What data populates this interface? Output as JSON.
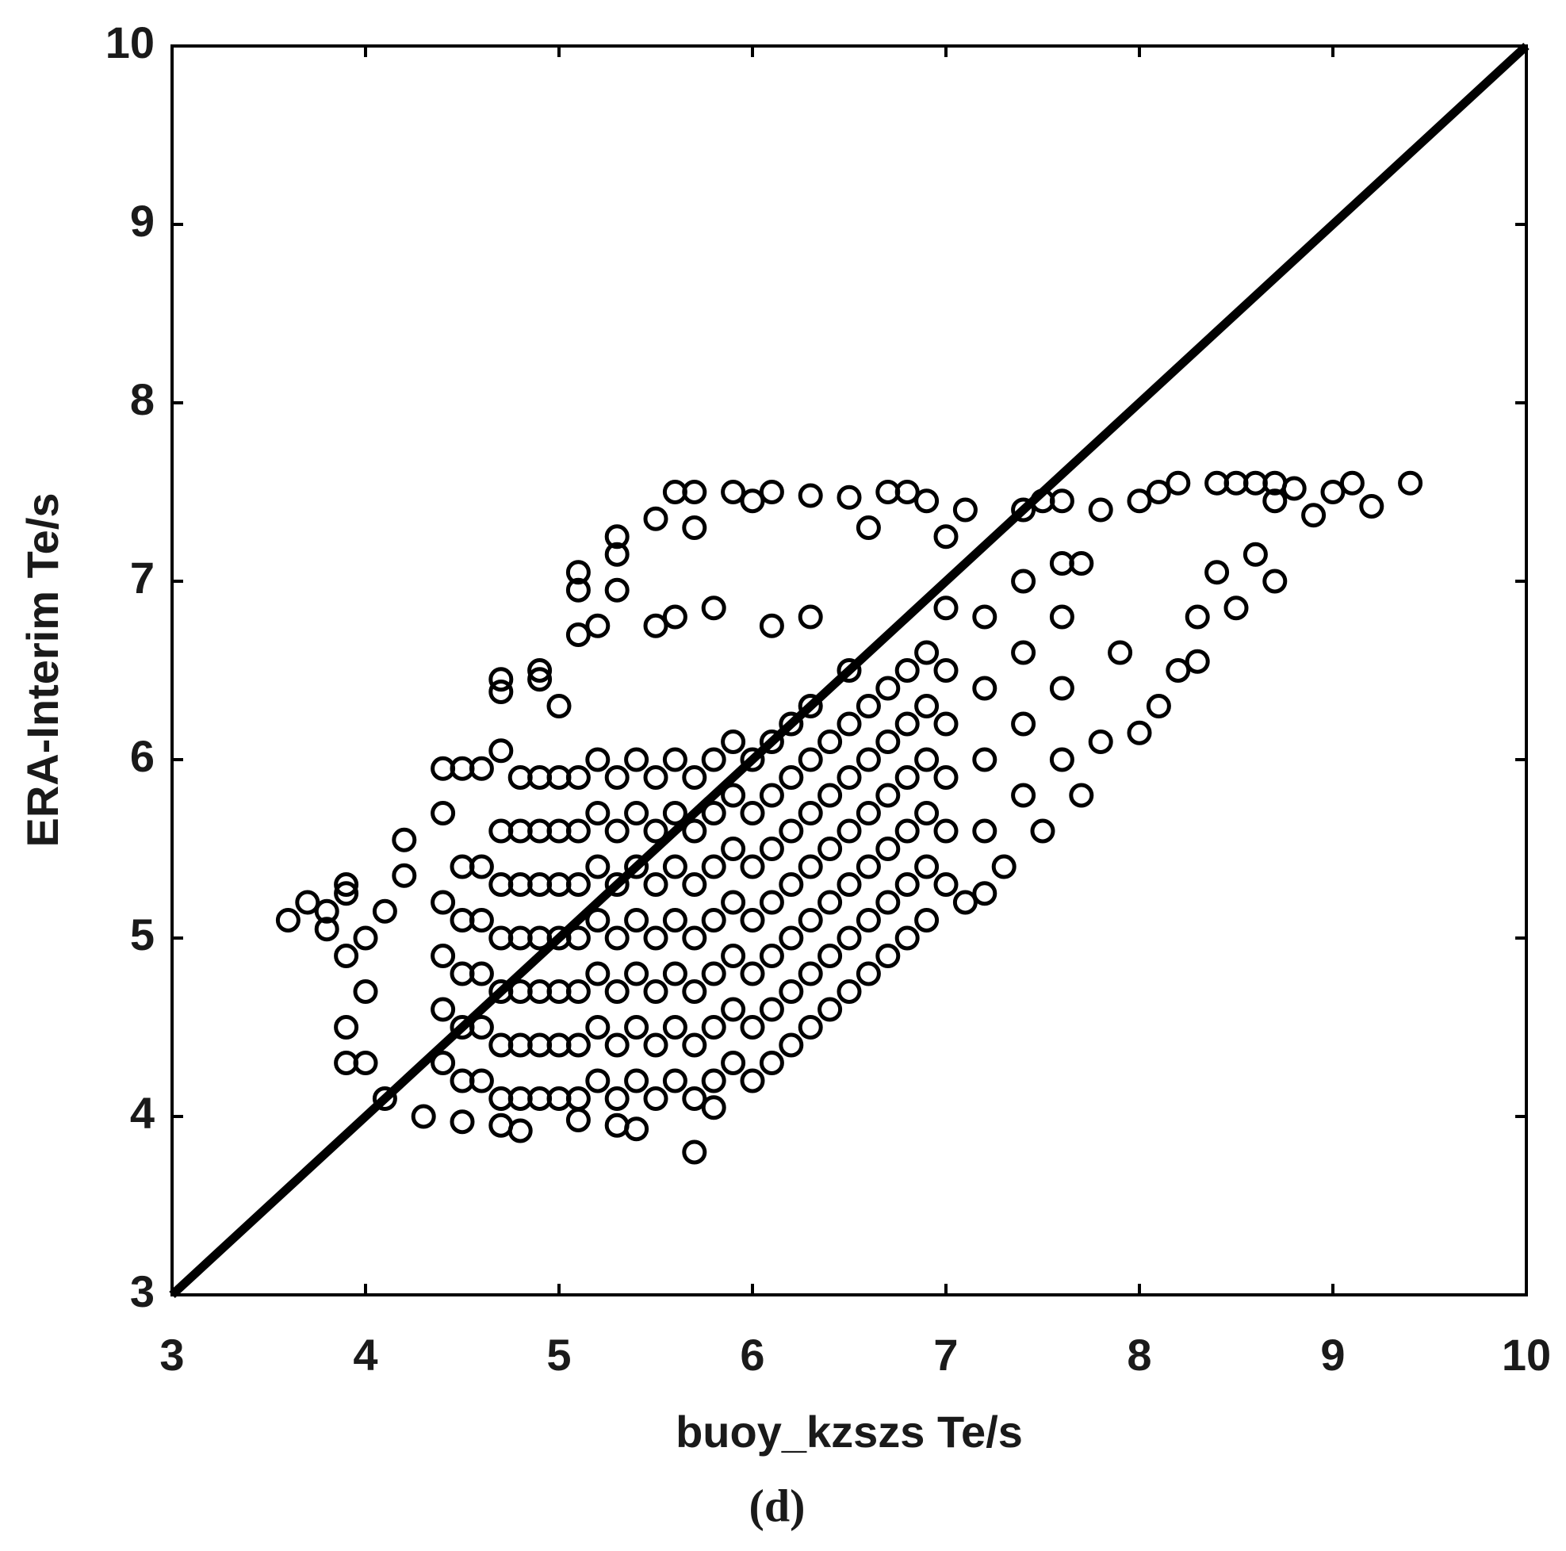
{
  "chart_data": {
    "type": "scatter",
    "xlabel": "buoy_kzszs Te/s",
    "ylabel": "ERA-Interim Te/s",
    "caption": "(d)",
    "xlim": [
      3,
      10
    ],
    "ylim": [
      3,
      10
    ],
    "xticks": [
      3,
      4,
      5,
      6,
      7,
      8,
      9,
      10
    ],
    "yticks": [
      3,
      4,
      5,
      6,
      7,
      8,
      9,
      10
    ],
    "color": "#000000",
    "diagonal": {
      "x": [
        3,
        10
      ],
      "y": [
        3,
        10
      ]
    },
    "x": [
      3.6,
      3.7,
      3.8,
      3.8,
      3.9,
      3.9,
      3.9,
      3.9,
      3.9,
      4.0,
      4.0,
      4.0,
      4.1,
      4.1,
      4.2,
      4.2,
      4.3,
      4.4,
      4.4,
      4.5,
      4.5,
      4.6,
      4.7,
      4.7,
      4.7,
      4.7,
      4.8,
      4.9,
      4.9,
      5.0,
      5.1,
      5.1,
      5.1,
      5.1,
      5.2,
      5.3,
      5.3,
      5.3,
      5.3,
      5.4,
      5.5,
      5.5,
      5.6,
      5.6,
      5.7,
      5.7,
      5.7,
      5.8,
      5.8,
      5.9,
      6.0,
      6.1,
      6.1,
      6.3,
      6.3,
      6.5,
      6.6,
      6.7,
      6.8,
      6.9,
      7.0,
      7.0,
      7.1,
      7.1,
      7.2,
      7.3,
      7.4,
      7.5,
      7.5,
      7.6,
      7.7,
      7.7,
      7.8,
      7.8,
      7.9,
      8.0,
      8.0,
      8.1,
      8.1,
      8.2,
      8.2,
      8.3,
      8.3,
      8.4,
      8.4,
      8.5,
      8.5,
      8.6,
      8.6,
      8.7,
      8.7,
      8.7,
      8.8,
      8.9,
      9.0,
      9.1,
      9.2,
      9.4,
      4.4,
      4.4,
      4.4,
      4.4,
      4.5,
      4.5,
      4.5,
      4.5,
      4.5,
      4.6,
      4.6,
      4.6,
      4.6,
      4.6,
      4.7,
      4.7,
      4.7,
      4.7,
      4.7,
      4.7,
      4.8,
      4.8,
      4.8,
      4.8,
      4.8,
      4.8,
      4.8,
      4.9,
      4.9,
      4.9,
      4.9,
      4.9,
      4.9,
      4.9,
      5.0,
      5.0,
      5.0,
      5.0,
      5.0,
      5.0,
      5.0,
      5.1,
      5.1,
      5.1,
      5.1,
      5.1,
      5.1,
      5.1,
      5.2,
      5.2,
      5.2,
      5.2,
      5.2,
      5.2,
      5.2,
      5.3,
      5.3,
      5.3,
      5.3,
      5.3,
      5.3,
      5.3,
      5.4,
      5.4,
      5.4,
      5.4,
      5.4,
      5.4,
      5.4,
      5.5,
      5.5,
      5.5,
      5.5,
      5.5,
      5.5,
      5.5,
      5.6,
      5.6,
      5.6,
      5.6,
      5.6,
      5.6,
      5.6,
      5.7,
      5.7,
      5.7,
      5.7,
      5.7,
      5.7,
      5.7,
      5.8,
      5.8,
      5.8,
      5.8,
      5.8,
      5.8,
      5.8,
      5.9,
      5.9,
      5.9,
      5.9,
      5.9,
      5.9,
      5.9,
      6.0,
      6.0,
      6.0,
      6.0,
      6.0,
      6.0,
      6.0,
      6.1,
      6.1,
      6.1,
      6.1,
      6.1,
      6.1,
      6.1,
      6.2,
      6.2,
      6.2,
      6.2,
      6.2,
      6.2,
      6.2,
      6.3,
      6.3,
      6.3,
      6.3,
      6.3,
      6.3,
      6.3,
      6.4,
      6.4,
      6.4,
      6.4,
      6.4,
      6.4,
      6.5,
      6.5,
      6.5,
      6.5,
      6.5,
      6.5,
      6.5,
      6.6,
      6.6,
      6.6,
      6.6,
      6.6,
      6.6,
      6.7,
      6.7,
      6.7,
      6.7,
      6.7,
      6.7,
      6.8,
      6.8,
      6.8,
      6.8,
      6.8,
      6.8,
      6.9,
      6.9,
      6.9,
      6.9,
      6.9,
      6.9,
      7.0,
      7.0,
      7.0,
      7.0,
      7.0,
      7.2,
      7.2,
      7.2,
      7.2,
      7.4,
      7.4,
      7.4,
      7.4,
      7.6,
      7.6,
      7.6,
      7.6
    ],
    "values": [
      5.1,
      5.2,
      5.15,
      5.05,
      5.3,
      5.25,
      4.9,
      4.5,
      4.3,
      5.0,
      4.7,
      4.3,
      5.15,
      4.1,
      5.55,
      5.35,
      4.0,
      5.95,
      5.7,
      5.95,
      3.97,
      5.95,
      6.45,
      6.38,
      6.05,
      3.95,
      3.92,
      6.5,
      6.45,
      6.3,
      7.05,
      6.95,
      6.7,
      3.98,
      6.75,
      7.25,
      7.15,
      6.95,
      3.95,
      3.93,
      7.35,
      6.75,
      7.5,
      6.8,
      7.5,
      7.3,
      3.8,
      6.85,
      4.05,
      7.5,
      7.45,
      7.5,
      6.75,
      7.48,
      6.8,
      7.47,
      7.3,
      7.5,
      7.5,
      7.45,
      7.25,
      6.85,
      7.4,
      5.2,
      5.25,
      5.4,
      7.4,
      7.45,
      5.6,
      7.45,
      5.8,
      7.1,
      7.4,
      6.1,
      6.6,
      7.45,
      6.15,
      7.5,
      6.3,
      7.55,
      6.5,
      6.55,
      6.8,
      7.55,
      7.05,
      7.55,
      6.85,
      7.55,
      7.15,
      7.55,
      7.45,
      7.0,
      7.52,
      7.37,
      7.5,
      7.55,
      7.42,
      7.55,
      4.3,
      4.6,
      4.9,
      5.2,
      4.2,
      4.5,
      4.8,
      5.1,
      5.4,
      4.2,
      4.5,
      4.8,
      5.1,
      5.4,
      4.1,
      4.4,
      4.7,
      5.0,
      5.3,
      5.6,
      4.1,
      4.4,
      4.7,
      5.0,
      5.3,
      5.6,
      5.9,
      4.1,
      4.4,
      4.7,
      5.0,
      5.3,
      5.6,
      5.9,
      4.1,
      4.4,
      4.7,
      5.0,
      5.3,
      5.6,
      5.9,
      4.1,
      4.4,
      4.7,
      5.0,
      5.3,
      5.6,
      5.9,
      4.2,
      4.5,
      4.8,
      5.1,
      5.4,
      5.7,
      6.0,
      4.1,
      4.4,
      4.7,
      5.0,
      5.3,
      5.6,
      5.9,
      4.2,
      4.5,
      4.8,
      5.1,
      5.4,
      5.7,
      6.0,
      4.1,
      4.4,
      4.7,
      5.0,
      5.3,
      5.6,
      5.9,
      4.2,
      4.5,
      4.8,
      5.1,
      5.4,
      5.7,
      6.0,
      4.1,
      4.4,
      4.7,
      5.0,
      5.3,
      5.6,
      5.9,
      4.2,
      4.5,
      4.8,
      5.1,
      5.4,
      5.7,
      6.0,
      4.3,
      4.6,
      4.9,
      5.2,
      5.5,
      5.8,
      6.1,
      4.2,
      4.5,
      4.8,
      5.1,
      5.4,
      5.7,
      6.0,
      4.3,
      4.6,
      4.9,
      5.2,
      5.5,
      5.8,
      6.1,
      4.4,
      4.7,
      5.0,
      5.3,
      5.6,
      5.9,
      6.2,
      4.5,
      4.8,
      5.1,
      5.4,
      5.7,
      6.0,
      6.3,
      4.6,
      4.9,
      5.2,
      5.5,
      5.8,
      6.1,
      4.7,
      5.0,
      5.3,
      5.6,
      5.9,
      6.2,
      6.5,
      4.8,
      5.1,
      5.4,
      5.7,
      6.0,
      6.3,
      4.9,
      5.2,
      5.5,
      5.8,
      6.1,
      6.4,
      5.0,
      5.3,
      5.6,
      5.9,
      6.2,
      6.5,
      5.1,
      5.4,
      5.7,
      6.0,
      6.3,
      6.6,
      5.3,
      5.6,
      5.9,
      6.2,
      6.5,
      5.6,
      6.0,
      6.4,
      6.8,
      5.8,
      6.2,
      6.6,
      7.0,
      6.0,
      6.4,
      6.8,
      7.1
    ]
  }
}
